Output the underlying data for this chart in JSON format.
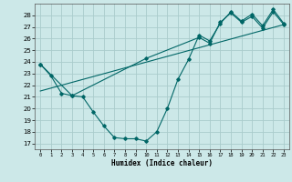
{
  "xlabel": "Humidex (Indice chaleur)",
  "bg_color": "#cce8e8",
  "grid_color": "#aacccc",
  "line_color": "#006666",
  "xlim": [
    -0.5,
    23.5
  ],
  "ylim": [
    16.5,
    29.0
  ],
  "yticks": [
    17,
    18,
    19,
    20,
    21,
    22,
    23,
    24,
    25,
    26,
    27,
    28
  ],
  "xticks": [
    0,
    1,
    2,
    3,
    4,
    5,
    6,
    7,
    8,
    9,
    10,
    11,
    12,
    13,
    14,
    15,
    16,
    17,
    18,
    19,
    20,
    21,
    22,
    23
  ],
  "line1_x": [
    0,
    1,
    2,
    3,
    4,
    5,
    6,
    7,
    8,
    9,
    10,
    11,
    12,
    13,
    14,
    15,
    16,
    17,
    18,
    19,
    20,
    21,
    22,
    23
  ],
  "line1_y": [
    23.8,
    22.8,
    21.3,
    21.1,
    21.0,
    19.7,
    18.5,
    17.5,
    17.4,
    17.4,
    17.2,
    18.0,
    20.0,
    22.5,
    24.2,
    26.3,
    25.8,
    27.3,
    28.3,
    27.5,
    28.1,
    27.1,
    28.5,
    27.3
  ],
  "line2_x": [
    0,
    3,
    10,
    15,
    16,
    17,
    18,
    19,
    20,
    21,
    22,
    23
  ],
  "line2_y": [
    23.8,
    21.1,
    24.3,
    26.1,
    25.6,
    27.4,
    28.2,
    27.4,
    27.9,
    26.9,
    28.3,
    27.2
  ],
  "line3_x": [
    0,
    23
  ],
  "line3_y": [
    21.5,
    27.2
  ]
}
